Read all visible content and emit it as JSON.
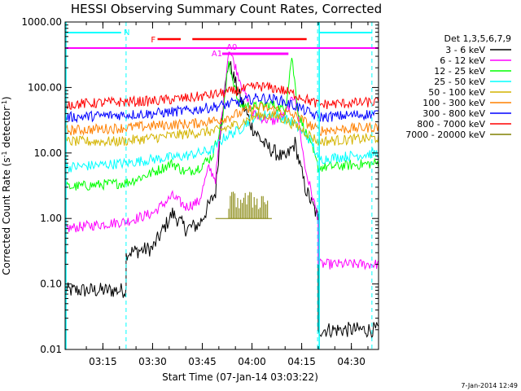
{
  "chart_data": {
    "type": "line",
    "title": "HESSI Observing Summary Count Rates, Corrected",
    "xlabel": "Start Time (07-Jan-14 03:03:22)",
    "ylabel_main": "Corrected Count Rate (s",
    "ylabel_sup": "-1",
    "ylabel_tail": " detector",
    "ylabel_sup2": "-1",
    "ylabel_end": ")",
    "yscale": "log",
    "ylim": [
      0.01,
      1000
    ],
    "xlim_minutes": [
      3.6,
      98.2
    ],
    "x_ticks": [
      {
        "m": 15,
        "label": "03:15"
      },
      {
        "m": 30,
        "label": "03:30"
      },
      {
        "m": 45,
        "label": "03:45"
      },
      {
        "m": 60,
        "label": "04:00"
      },
      {
        "m": 75,
        "label": "04:15"
      },
      {
        "m": 90,
        "label": "04:30"
      }
    ],
    "y_ticks": [
      {
        "v": 0.01,
        "label": "0.01"
      },
      {
        "v": 0.1,
        "label": "0.10"
      },
      {
        "v": 1,
        "label": "1.00"
      },
      {
        "v": 10,
        "label": "10.00"
      },
      {
        "v": 100,
        "label": "100.00"
      },
      {
        "v": 1000,
        "label": "1000.00"
      }
    ],
    "legend_title": "Det 1,3,5,6,7,9",
    "series": [
      {
        "name": "3 - 6 keV",
        "color": "#000000",
        "points": [
          [
            3.6,
            0.08
          ],
          [
            22,
            0.08
          ],
          [
            22,
            0.3
          ],
          [
            30,
            0.35
          ],
          [
            36,
            1.2
          ],
          [
            40,
            0.7
          ],
          [
            44,
            0.8
          ],
          [
            49,
            2.5
          ],
          [
            51,
            45
          ],
          [
            53,
            250
          ],
          [
            56,
            80
          ],
          [
            60,
            25
          ],
          [
            64,
            13
          ],
          [
            70,
            8
          ],
          [
            73,
            14
          ],
          [
            76,
            3
          ],
          [
            80,
            1.0
          ],
          [
            80,
            0.02
          ],
          [
            98.2,
            0.02
          ]
        ]
      },
      {
        "name": "6 - 12 keV",
        "color": "#ff00ff",
        "points": [
          [
            3.6,
            0.7
          ],
          [
            22,
            0.9
          ],
          [
            30,
            1.2
          ],
          [
            36,
            2.2
          ],
          [
            40,
            1.5
          ],
          [
            44,
            1.8
          ],
          [
            47,
            6
          ],
          [
            49,
            4
          ],
          [
            51,
            40
          ],
          [
            53,
            400
          ],
          [
            56,
            150
          ],
          [
            60,
            40
          ],
          [
            66,
            30
          ],
          [
            70,
            38
          ],
          [
            73,
            80
          ],
          [
            76,
            6
          ],
          [
            80,
            1.0
          ],
          [
            80,
            0.2
          ],
          [
            98.2,
            0.2
          ]
        ]
      },
      {
        "name": "12 - 25 keV",
        "color": "#00ff00",
        "points": [
          [
            3.6,
            3
          ],
          [
            22,
            3.5
          ],
          [
            30,
            5
          ],
          [
            36,
            7
          ],
          [
            40,
            5
          ],
          [
            44,
            6
          ],
          [
            48,
            9
          ],
          [
            51,
            30
          ],
          [
            53,
            250
          ],
          [
            56,
            55
          ],
          [
            60,
            50
          ],
          [
            66,
            55
          ],
          [
            70,
            45
          ],
          [
            72,
            300
          ],
          [
            74,
            40
          ],
          [
            78,
            12
          ],
          [
            80,
            6
          ],
          [
            98.2,
            7
          ]
        ]
      },
      {
        "name": "25 - 50 keV",
        "color": "#00ffff",
        "points": [
          [
            3.6,
            6
          ],
          [
            22,
            7
          ],
          [
            30,
            8
          ],
          [
            40,
            9
          ],
          [
            48,
            11
          ],
          [
            52,
            18
          ],
          [
            56,
            22
          ],
          [
            60,
            35
          ],
          [
            66,
            40
          ],
          [
            72,
            30
          ],
          [
            78,
            15
          ],
          [
            80,
            8
          ],
          [
            98.2,
            10
          ]
        ]
      },
      {
        "name": "50 - 100 keV",
        "color": "#d4b400",
        "points": [
          [
            3.6,
            15
          ],
          [
            20,
            15
          ],
          [
            30,
            17
          ],
          [
            42,
            20
          ],
          [
            50,
            22
          ],
          [
            56,
            28
          ],
          [
            62,
            38
          ],
          [
            68,
            36
          ],
          [
            74,
            25
          ],
          [
            80,
            15
          ],
          [
            98.2,
            17
          ]
        ]
      },
      {
        "name": "100 - 300 keV",
        "color": "#ff8000",
        "points": [
          [
            3.6,
            22
          ],
          [
            20,
            24
          ],
          [
            30,
            26
          ],
          [
            42,
            28
          ],
          [
            50,
            32
          ],
          [
            56,
            40
          ],
          [
            62,
            50
          ],
          [
            68,
            45
          ],
          [
            74,
            35
          ],
          [
            80,
            22
          ],
          [
            98.2,
            25
          ]
        ]
      },
      {
        "name": "300 - 800 keV",
        "color": "#0000ff",
        "points": [
          [
            3.6,
            35
          ],
          [
            20,
            38
          ],
          [
            30,
            40
          ],
          [
            42,
            45
          ],
          [
            50,
            52
          ],
          [
            56,
            60
          ],
          [
            62,
            70
          ],
          [
            68,
            65
          ],
          [
            74,
            50
          ],
          [
            80,
            35
          ],
          [
            98.2,
            40
          ]
        ]
      },
      {
        "name": "800 - 7000 keV",
        "color": "#ff0000",
        "points": [
          [
            3.6,
            55
          ],
          [
            20,
            60
          ],
          [
            30,
            62
          ],
          [
            42,
            70
          ],
          [
            50,
            80
          ],
          [
            56,
            90
          ],
          [
            62,
            105
          ],
          [
            68,
            95
          ],
          [
            74,
            75
          ],
          [
            80,
            55
          ],
          [
            98.2,
            60
          ]
        ]
      },
      {
        "name": "7000 - 20000 keV",
        "color": "#808000",
        "points": [
          [
            49,
            1.0
          ],
          [
            66,
            1.0
          ]
        ]
      }
    ],
    "flags": {
      "night": {
        "label": "N",
        "color": "#00ffff"
      },
      "flare": {
        "label": "F",
        "color": "#ff0000"
      },
      "attenuator": {
        "label": "A1",
        "color": "#ff00ff"
      },
      "attenuator2": {
        "label": "A0",
        "color": "#ff00ff"
      }
    },
    "timestamp": "7-Jan-2014 12:49"
  }
}
